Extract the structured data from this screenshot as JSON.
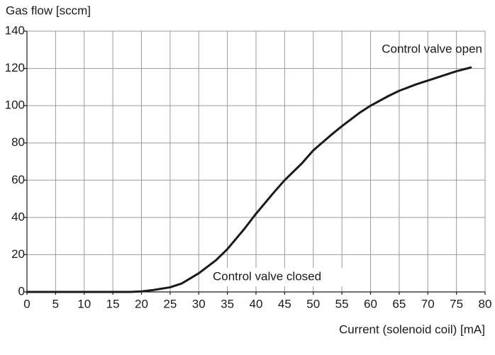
{
  "chart_data": {
    "type": "line",
    "y_label": "Gas flow [sccm]",
    "x_label": "Current (solenoid coil) [mA]",
    "annotations": [
      "Control valve open",
      "Control valve closed"
    ],
    "x": [
      0,
      5,
      10,
      15,
      18,
      20,
      22,
      25,
      27,
      30,
      33,
      35,
      38,
      40,
      43,
      45,
      48,
      50,
      53,
      55,
      58,
      60,
      63,
      65,
      68,
      70,
      73,
      75,
      77.5
    ],
    "series": [
      {
        "color": "#1a1a1a",
        "values": [
          0,
          0,
          0,
          0,
          0,
          0.3,
          1,
          2.5,
          4.5,
          10,
          17,
          23,
          34,
          42,
          53,
          60,
          69,
          76,
          84,
          89,
          96,
          100,
          105,
          108,
          111.5,
          113.5,
          116.5,
          118.5,
          120.5
        ]
      }
    ],
    "xlim": [
      0,
      80
    ],
    "xticks": [
      0,
      5,
      10,
      15,
      20,
      25,
      30,
      35,
      40,
      45,
      50,
      55,
      60,
      65,
      70,
      75,
      80
    ],
    "ylim": [
      0,
      140
    ],
    "yticks": [
      0,
      20,
      40,
      60,
      80,
      100,
      120,
      140
    ],
    "grid": true
  }
}
